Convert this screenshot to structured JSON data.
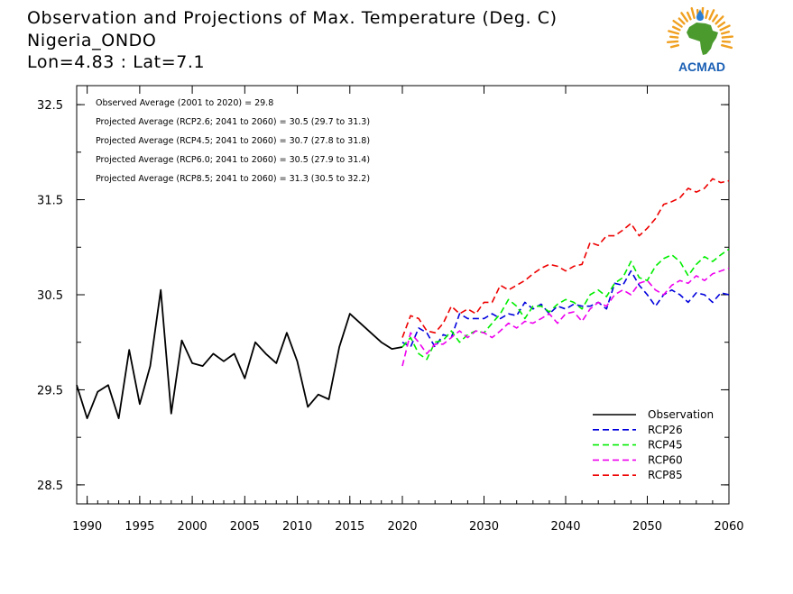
{
  "title_lines": [
    "Observation and Projections of Max. Temperature (Deg. C)",
    "Nigeria_ONDO",
    "Lon=4.83 : Lat=7.1"
  ],
  "logo": {
    "text": "ACMAD",
    "colors": {
      "africa": "#4a9a2e",
      "rays": "#f0a020",
      "drop": "#2a7fd4",
      "text": "#1a5fb4"
    }
  },
  "annotations": [
    "Observed Average (2001 to 2020) = 29.8",
    "Projected Average (RCP2.6; 2041 to 2060) = 30.5 (29.7 to 31.3)",
    "Projected Average (RCP4.5; 2041 to 2060) = 30.7 (27.8 to 31.8)",
    "Projected Average (RCP6.0; 2041 to 2060) = 30.5 (27.9 to 31.4)",
    "Projected Average (RCP8.5; 2041 to 2060) = 31.3 (30.5 to 32.2)"
  ],
  "chart_data": {
    "type": "line",
    "x_ticks": [
      1990,
      1995,
      2000,
      2005,
      2010,
      2015,
      2020,
      2030,
      2040,
      2050,
      2060
    ],
    "y_ticks": [
      28.5,
      29.5,
      30.5,
      31.5,
      32.5
    ],
    "ylim": [
      28.3,
      32.7
    ],
    "xlim": [
      1989,
      2060
    ],
    "legend_position": "bottom-right",
    "series": [
      {
        "name": "Observation",
        "color": "#000000",
        "dashed": false,
        "x": [
          1989,
          1990,
          1991,
          1992,
          1993,
          1994,
          1995,
          1996,
          1997,
          1998,
          1999,
          2000,
          2001,
          2002,
          2003,
          2004,
          2005,
          2006,
          2007,
          2008,
          2009,
          2010,
          2011,
          2012,
          2013,
          2014,
          2015,
          2016,
          2017,
          2018,
          2019,
          2020
        ],
        "y": [
          29.55,
          29.2,
          29.48,
          29.55,
          29.2,
          29.92,
          29.35,
          29.75,
          30.55,
          29.25,
          30.02,
          29.78,
          29.75,
          29.88,
          29.8,
          29.88,
          29.62,
          30.0,
          29.88,
          29.78,
          30.1,
          29.8,
          29.32,
          29.45,
          29.4,
          29.95,
          30.3,
          30.2,
          30.1,
          30.0,
          29.93,
          29.95
        ]
      },
      {
        "name": "RCP26",
        "color": "#0000dd",
        "dashed": true,
        "x": [
          2020,
          2021,
          2022,
          2023,
          2024,
          2025,
          2026,
          2027,
          2028,
          2029,
          2030,
          2031,
          2032,
          2033,
          2034,
          2035,
          2036,
          2037,
          2038,
          2039,
          2040,
          2041,
          2042,
          2043,
          2044,
          2045,
          2046,
          2047,
          2048,
          2049,
          2050,
          2051,
          2052,
          2053,
          2054,
          2055,
          2056,
          2057,
          2058,
          2059,
          2060
        ],
        "y": [
          30.0,
          29.95,
          30.15,
          30.1,
          29.95,
          30.08,
          30.05,
          30.3,
          30.25,
          30.25,
          30.25,
          30.3,
          30.25,
          30.3,
          30.28,
          30.42,
          30.35,
          30.4,
          30.3,
          30.38,
          30.35,
          30.4,
          30.38,
          30.38,
          30.42,
          30.35,
          30.62,
          30.6,
          30.75,
          30.6,
          30.5,
          30.38,
          30.5,
          30.55,
          30.5,
          30.42,
          30.52,
          30.5,
          30.42,
          30.52,
          30.5
        ]
      },
      {
        "name": "RCP45",
        "color": "#00ee00",
        "dashed": true,
        "x": [
          2020,
          2021,
          2022,
          2023,
          2024,
          2025,
          2026,
          2027,
          2028,
          2029,
          2030,
          2031,
          2032,
          2033,
          2034,
          2035,
          2036,
          2037,
          2038,
          2039,
          2040,
          2041,
          2042,
          2043,
          2044,
          2045,
          2046,
          2047,
          2048,
          2049,
          2050,
          2051,
          2052,
          2053,
          2054,
          2055,
          2056,
          2057,
          2058,
          2059,
          2060
        ],
        "y": [
          29.95,
          30.05,
          29.88,
          29.82,
          30.0,
          30.02,
          30.12,
          30.0,
          30.08,
          30.12,
          30.1,
          30.2,
          30.3,
          30.45,
          30.38,
          30.25,
          30.38,
          30.38,
          30.32,
          30.4,
          30.45,
          30.42,
          30.35,
          30.5,
          30.55,
          30.48,
          30.62,
          30.68,
          30.85,
          30.68,
          30.65,
          30.8,
          30.88,
          30.92,
          30.85,
          30.7,
          30.82,
          30.9,
          30.85,
          30.92,
          30.98
        ]
      },
      {
        "name": "RCP60",
        "color": "#ee00ee",
        "dashed": true,
        "x": [
          2020,
          2021,
          2022,
          2023,
          2024,
          2025,
          2026,
          2027,
          2028,
          2029,
          2030,
          2031,
          2032,
          2033,
          2034,
          2035,
          2036,
          2037,
          2038,
          2039,
          2040,
          2041,
          2042,
          2043,
          2044,
          2045,
          2046,
          2047,
          2048,
          2049,
          2050,
          2051,
          2052,
          2053,
          2054,
          2055,
          2056,
          2057,
          2058,
          2059,
          2060
        ],
        "y": [
          29.75,
          30.1,
          30.0,
          29.88,
          29.98,
          29.98,
          30.05,
          30.12,
          30.05,
          30.12,
          30.1,
          30.05,
          30.12,
          30.2,
          30.15,
          30.22,
          30.2,
          30.25,
          30.3,
          30.2,
          30.3,
          30.32,
          30.22,
          30.35,
          30.42,
          30.38,
          30.5,
          30.55,
          30.5,
          30.62,
          30.65,
          30.55,
          30.5,
          30.6,
          30.65,
          30.62,
          30.7,
          30.65,
          30.72,
          30.75,
          30.78
        ]
      },
      {
        "name": "RCP85",
        "color": "#ee0000",
        "dashed": true,
        "x": [
          2020,
          2021,
          2022,
          2023,
          2024,
          2025,
          2026,
          2027,
          2028,
          2029,
          2030,
          2031,
          2032,
          2033,
          2034,
          2035,
          2036,
          2037,
          2038,
          2039,
          2040,
          2041,
          2042,
          2043,
          2044,
          2045,
          2046,
          2047,
          2048,
          2049,
          2050,
          2051,
          2052,
          2053,
          2054,
          2055,
          2056,
          2057,
          2058,
          2059,
          2060
        ],
        "y": [
          30.05,
          30.28,
          30.25,
          30.12,
          30.1,
          30.2,
          30.38,
          30.3,
          30.35,
          30.3,
          30.42,
          30.42,
          30.6,
          30.55,
          30.6,
          30.65,
          30.72,
          30.78,
          30.82,
          30.8,
          30.75,
          30.8,
          30.82,
          31.05,
          31.02,
          31.12,
          31.12,
          31.18,
          31.25,
          31.12,
          31.2,
          31.3,
          31.45,
          31.48,
          31.52,
          31.62,
          31.58,
          31.62,
          31.72,
          31.68,
          31.7
        ]
      }
    ]
  }
}
